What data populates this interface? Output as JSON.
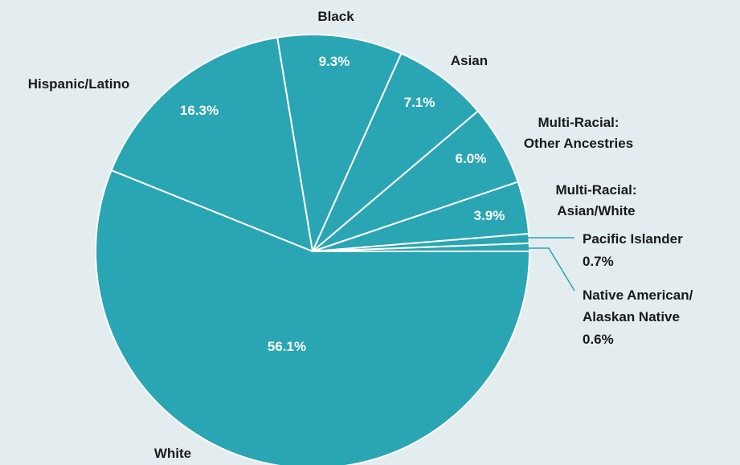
{
  "chart_data": {
    "type": "pie",
    "start": "3 o'clock",
    "direction": "counterclockwise",
    "slices": [
      {
        "name": "Native American/ Alaskan Native",
        "label_lines": [
          "Native American/",
          "Alaskan Native",
          "0.6%"
        ],
        "value": 0.6,
        "value_label": "0.6%"
      },
      {
        "name": "Pacific Islander",
        "label_lines": [
          "Pacific Islander",
          "0.7%"
        ],
        "value": 0.7,
        "value_label": "0.7%"
      },
      {
        "name": "Multi-Racial: Asian/White",
        "label_lines": [
          "Multi-Racial:",
          "Asian/White"
        ],
        "value": 3.9,
        "value_label": "3.9%"
      },
      {
        "name": "Multi-Racial: Other Ancestries",
        "label_lines": [
          "Multi-Racial:",
          "Other Ancestries"
        ],
        "value": 6.0,
        "value_label": "6.0%"
      },
      {
        "name": "Asian",
        "label_lines": [
          "Asian"
        ],
        "value": 7.1,
        "value_label": "7.1%"
      },
      {
        "name": "Black",
        "label_lines": [
          "Black"
        ],
        "value": 9.3,
        "value_label": "9.3%"
      },
      {
        "name": "Hispanic/Latino",
        "label_lines": [
          "Hispanic/Latino"
        ],
        "value": 16.3,
        "value_label": "16.3%"
      },
      {
        "name": "White",
        "label_lines": [
          "White"
        ],
        "value": 56.1,
        "value_label": "56.1%"
      }
    ],
    "colors": {
      "slice": "#2aa5b3",
      "border": "#ffffff",
      "background": "#e3ecef",
      "leader": "#2aa5b3",
      "text": "#1a1a1a"
    }
  }
}
